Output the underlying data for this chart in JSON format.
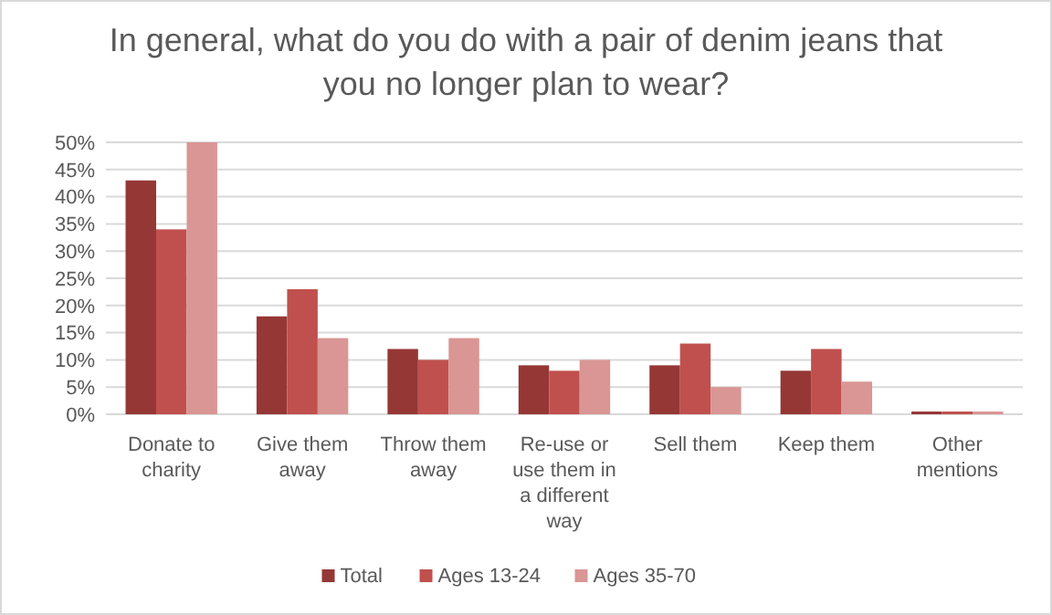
{
  "chart_data": {
    "type": "bar",
    "title": "In general, what do you do with a pair of denim jeans that you no longer plan to wear?",
    "categories": [
      "Donate to charity",
      "Give them away",
      "Throw them away",
      "Re-use or use them in a different way",
      "Sell them",
      "Keep them",
      "Other mentions"
    ],
    "series": [
      {
        "name": "Total",
        "color": "#953735",
        "values": [
          43,
          18,
          12,
          9,
          9,
          8,
          0.5
        ]
      },
      {
        "name": "Ages 13-24",
        "color": "#c0504d",
        "values": [
          34,
          23,
          10,
          8,
          13,
          12,
          0.5
        ]
      },
      {
        "name": "Ages 35-70",
        "color": "#d99694",
        "values": [
          50,
          14,
          14,
          10,
          5,
          6,
          0.5
        ]
      }
    ],
    "ylim": [
      0,
      50
    ],
    "yticks": [
      {
        "value": 0,
        "label": "0%"
      },
      {
        "value": 5,
        "label": "5%"
      },
      {
        "value": 10,
        "label": "10%"
      },
      {
        "value": 15,
        "label": "15%"
      },
      {
        "value": 20,
        "label": "20%"
      },
      {
        "value": 25,
        "label": "25%"
      },
      {
        "value": 30,
        "label": "30%"
      },
      {
        "value": 35,
        "label": "35%"
      },
      {
        "value": 40,
        "label": "40%"
      },
      {
        "value": 45,
        "label": "45%"
      },
      {
        "value": 50,
        "label": "50%"
      }
    ],
    "grid": "y",
    "legend": "bottom"
  }
}
